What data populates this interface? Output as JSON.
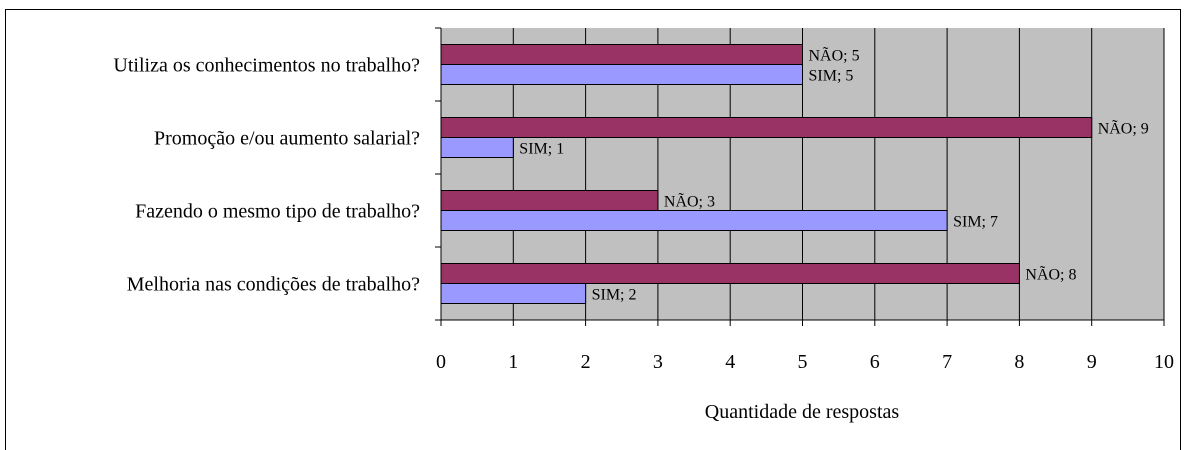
{
  "chart_data": {
    "type": "bar",
    "orientation": "horizontal",
    "categories": [
      "Utiliza os conhecimentos no trabalho?",
      "Promoção e/ou aumento salarial?",
      "Fazendo o mesmo tipo de trabalho?",
      "Melhoria nas condições de trabalho?"
    ],
    "series": [
      {
        "name": "NÃO",
        "color": "#993366",
        "values": [
          5,
          9,
          3,
          8
        ]
      },
      {
        "name": "SIM",
        "color": "#9999ff",
        "values": [
          5,
          1,
          7,
          2
        ]
      }
    ],
    "data_labels": {
      "NÃO": [
        "NÃO; 5",
        "NÃO; 9",
        "NÃO; 3",
        "NÃO; 8"
      ],
      "SIM": [
        "SIM; 5",
        "SIM; 1",
        "SIM; 7",
        "SIM; 2"
      ]
    },
    "x_ticks": [
      "0",
      "1",
      "2",
      "3",
      "4",
      "5",
      "6",
      "7",
      "8",
      "9",
      "10"
    ],
    "xlim": [
      0,
      10
    ],
    "xlabel": "Quantidade de respostas",
    "ylabel": "",
    "grid": true,
    "plot_background": "#c0c0c0",
    "legend": "none"
  }
}
